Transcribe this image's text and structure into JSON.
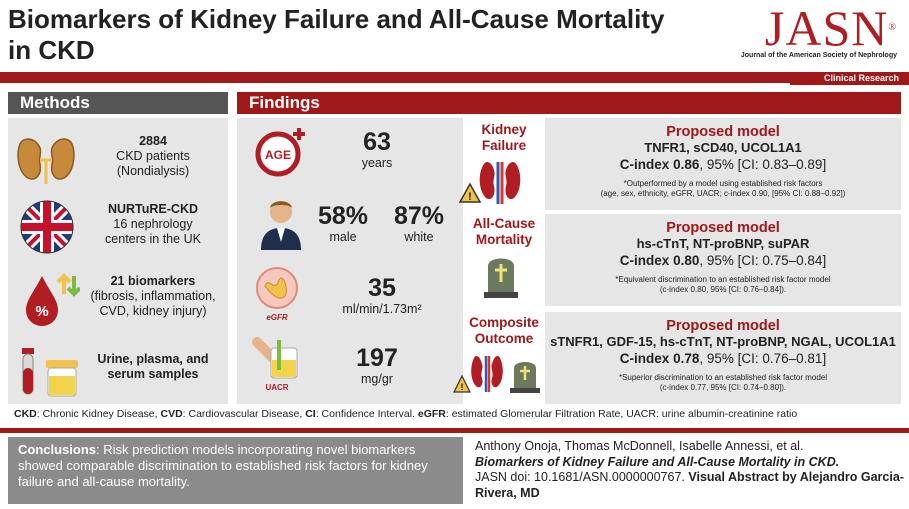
{
  "header": {
    "title": "Biomarkers of Kidney Failure and All-Cause Mortality in CKD",
    "logo_text": "JASN",
    "logo_reg": "®",
    "journal_name": "Journal of the American Society of Nephrology",
    "category": "Clinical Research"
  },
  "methods": {
    "heading": "Methods",
    "items": [
      {
        "bold": "2884",
        "line2": "CKD patients",
        "line3": "(Nondialysis)"
      },
      {
        "bold": "NURTuRE-CKD",
        "line2": "16 nephrology",
        "line3": "centers in the UK"
      },
      {
        "bold": "21 biomarkers",
        "line2": "(fibrosis, inflammation,",
        "line3": "CVD, kidney injury)"
      },
      {
        "bold": "Urine, plasma, and",
        "line2": "serum samples",
        "line3": ""
      }
    ]
  },
  "findings": {
    "heading": "Findings",
    "age": {
      "icon_text": "AGE",
      "value": "63",
      "unit": "years"
    },
    "sex": {
      "male_value": "58%",
      "male_label": "male",
      "white_value": "87%",
      "white_label": "white"
    },
    "egfr": {
      "icon_label": "eGFR",
      "value": "35",
      "unit": "ml/min/1.73m²"
    },
    "uacr": {
      "icon_label": "UACR",
      "value": "197",
      "unit": "mg/gr"
    }
  },
  "outcomes": [
    {
      "label_l1": "Kidney",
      "label_l2": "Failure",
      "title": "Proposed model",
      "markers": "TNFR1, sCD40, UCOL1A1",
      "cindex_label": "C-index",
      "cindex": "0.86",
      "ci": ", 95% [CI: 0.83–0.89]",
      "note_l1": "*Outperformed by a model using established risk factors",
      "note_l2": "(age, sex, ethnicity, eGFR, UACR; c-index 0.90, [95% CI: 0.88–0.92])"
    },
    {
      "label_l1": "All-Cause",
      "label_l2": "Mortality",
      "title": "Proposed model",
      "markers": "hs-cTnT, NT-proBNP, suPAR",
      "cindex_label": "C-index",
      "cindex": "0.80",
      "ci": ", 95% [CI: 0.75–0.84]",
      "note_l1": "*Equivalent discrimination to an established risk factor model",
      "note_l2": "(c-index 0.80, 95% [CI: 0.76–0.84])."
    },
    {
      "label_l1": "Composite",
      "label_l2": "Outcome",
      "title": "Proposed model",
      "markers": "sTNFR1, GDF-15, hs-cTnT, NT-proBNP, NGAL, UCOL1A1",
      "cindex_label": "C-index",
      "cindex": "0.78",
      "ci": ", 95% [CI: 0.76–0.81]",
      "note_l1": "*Superior discrimination to an established risk factor model",
      "note_l2": "(c-index 0.77, 95% [CI: 0.74–0.80])."
    }
  ],
  "abbreviations": [
    {
      "abbr": "CKD",
      "def": ": Chronic Kidney Disease, "
    },
    {
      "abbr": "CVD",
      "def": ": Cardiovascular Disease, "
    },
    {
      "abbr": "CI",
      "def": ": Confidence Interval. "
    },
    {
      "abbr": "eGFR",
      "def": ": estimated Glomerular Filtration Rate, UACR: urine albumin-creatinine ratio"
    }
  ],
  "conclusion": {
    "label": "Conclusions",
    "text": ": Risk prediction models incorporating novel biomarkers showed comparable discrimination to established risk factors for kidney failure and all-cause mortality."
  },
  "citation": {
    "authors": "Anthony Onoja, Thomas McDonnell, Isabelle Annessi, et al.",
    "title": "Biomarkers of Kidney Failure and All-Cause Mortality in CKD.",
    "doi": "JASN doi: 10.1681/ASN.0000000767. ",
    "credit": "Visual Abstract by Alejandro Garcia-Rivera, MD"
  },
  "colors": {
    "accent": "#a01818",
    "methods_header": "#555555",
    "panel": "#e6e6e6",
    "conclusion_bg": "#8b8b8b"
  }
}
